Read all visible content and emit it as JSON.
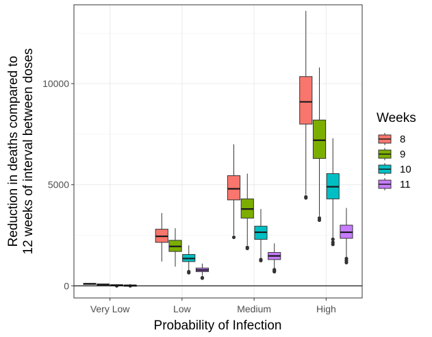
{
  "chart_data": {
    "type": "box",
    "title": "",
    "xlabel": "Probability of Infection",
    "ylabel_lines": [
      "Reduction in deaths compared to",
      "12 weeks of interval between doses"
    ],
    "categories": [
      "Very Low",
      "Low",
      "Medium",
      "High"
    ],
    "y_ticks": [
      0,
      5000,
      10000
    ],
    "y_tick_labels": [
      "0",
      "5000",
      "10000"
    ],
    "ylim": [
      -600,
      13900
    ],
    "hline": 0,
    "legend_title": "Weeks",
    "legend_position": "right",
    "grid": true,
    "series": [
      {
        "name": "8",
        "color": "#F8766D",
        "boxes": [
          {
            "whisker_low": 60,
            "q1": 80,
            "median": 100,
            "q3": 120,
            "whisker_high": 140,
            "outliers": []
          },
          {
            "whisker_low": 1200,
            "q1": 2150,
            "median": 2450,
            "q3": 2800,
            "whisker_high": 3600,
            "outliers": []
          },
          {
            "whisker_low": 2500,
            "q1": 4250,
            "median": 4800,
            "q3": 5450,
            "whisker_high": 7000,
            "outliers": [
              2400
            ]
          },
          {
            "whisker_low": 4500,
            "q1": 8000,
            "median": 9100,
            "q3": 10350,
            "whisker_high": 13600,
            "outliers": [
              4400,
              4350
            ]
          }
        ]
      },
      {
        "name": "9",
        "color": "#7CAE00",
        "boxes": [
          {
            "whisker_low": 40,
            "q1": 55,
            "median": 70,
            "q3": 85,
            "whisker_high": 100,
            "outliers": []
          },
          {
            "whisker_low": 950,
            "q1": 1700,
            "median": 1950,
            "q3": 2250,
            "whisker_high": 2850,
            "outliers": []
          },
          {
            "whisker_low": 2000,
            "q1": 3350,
            "median": 3800,
            "q3": 4300,
            "whisker_high": 5550,
            "outliers": [
              1900,
              1850
            ]
          },
          {
            "whisker_low": 3450,
            "q1": 6300,
            "median": 7200,
            "q3": 8200,
            "whisker_high": 10800,
            "outliers": [
              3350,
              3250
            ]
          }
        ]
      },
      {
        "name": "10",
        "color": "#00BFC4",
        "boxes": [
          {
            "whisker_low": 15,
            "q1": 28,
            "median": 38,
            "q3": 48,
            "whisker_high": 60,
            "outliers": [
              0
            ]
          },
          {
            "whisker_low": 750,
            "q1": 1200,
            "median": 1350,
            "q3": 1550,
            "whisker_high": 2000,
            "outliers": [
              700,
              650
            ]
          },
          {
            "whisker_low": 1350,
            "q1": 2300,
            "median": 2650,
            "q3": 2950,
            "whisker_high": 3800,
            "outliers": [
              1300,
              1250
            ]
          },
          {
            "whisker_low": 2350,
            "q1": 4300,
            "median": 4900,
            "q3": 5550,
            "whisker_high": 7300,
            "outliers": [
              2300,
              2150,
              2050
            ]
          }
        ]
      },
      {
        "name": "11",
        "color": "#C77CFF",
        "boxes": [
          {
            "whisker_low": 5,
            "q1": 15,
            "median": 22,
            "q3": 30,
            "whisker_high": 40,
            "outliers": [
              0
            ]
          },
          {
            "whisker_low": 500,
            "q1": 700,
            "median": 780,
            "q3": 880,
            "whisker_high": 1100,
            "outliers": [
              400,
              380
            ]
          },
          {
            "whisker_low": 850,
            "q1": 1300,
            "median": 1480,
            "q3": 1650,
            "whisker_high": 2100,
            "outliers": [
              800,
              750,
              700
            ]
          },
          {
            "whisker_low": 1400,
            "q1": 2350,
            "median": 2650,
            "q3": 3000,
            "whisker_high": 3850,
            "outliers": [
              1350,
              1250,
              1150
            ]
          }
        ]
      }
    ]
  }
}
